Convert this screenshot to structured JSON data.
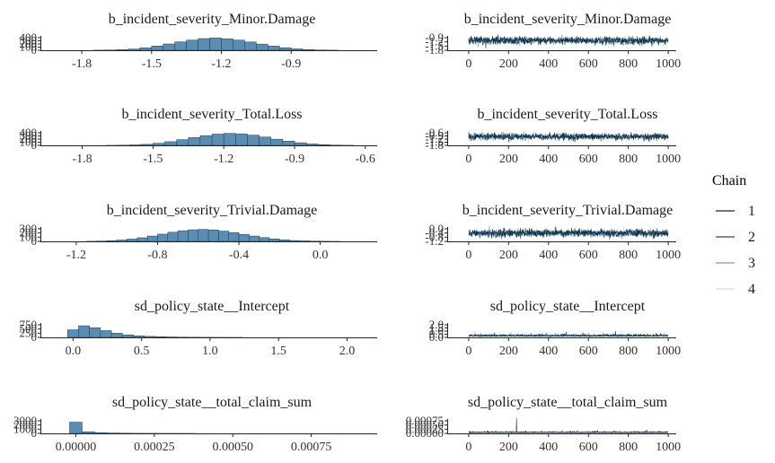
{
  "legend": {
    "title": "Chain",
    "items": [
      {
        "label": "1",
        "color": "#0b2b40"
      },
      {
        "label": "2",
        "color": "#2a4a64"
      },
      {
        "label": "3",
        "color": "#7a9cb6"
      },
      {
        "label": "4",
        "color": "#c8dceb"
      }
    ]
  },
  "chart_data": [
    {
      "type": "bar",
      "title": "b_incident_severity_Minor.Damage",
      "x_ticks": [
        -1.8,
        -1.5,
        -1.2,
        -0.9
      ],
      "x_tick_labels": [
        "-1.8",
        "-1.5",
        "-1.2",
        "-0.9"
      ],
      "xlim": [
        -1.92,
        -0.53
      ],
      "y_tick_labels": [
        "400",
        "300",
        "200",
        "100",
        "0"
      ],
      "ylim": [
        0,
        420
      ],
      "bin_width": 0.05,
      "bin_centers": [
        -1.725,
        -1.675,
        -1.625,
        -1.575,
        -1.525,
        -1.475,
        -1.425,
        -1.375,
        -1.325,
        -1.275,
        -1.225,
        -1.175,
        -1.125,
        -1.075,
        -1.025,
        -0.975,
        -0.925,
        -0.875,
        -0.825,
        -0.775,
        -0.725
      ],
      "values": [
        3,
        8,
        18,
        40,
        80,
        140,
        210,
        280,
        340,
        390,
        410,
        385,
        340,
        275,
        205,
        140,
        85,
        45,
        20,
        8,
        3
      ]
    },
    {
      "type": "line",
      "title": "b_incident_severity_Minor.Damage",
      "x_ticks": [
        0,
        200,
        400,
        600,
        800,
        1000
      ],
      "x_tick_labels": [
        "0",
        "200",
        "400",
        "600",
        "800",
        "1000"
      ],
      "xlim": [
        -40,
        1040
      ],
      "y_tick_labels": [
        "-0.9",
        "-1.2",
        "-1.5",
        "-1.8"
      ],
      "y_ticks": [
        -0.9,
        -1.2,
        -1.5,
        -1.8
      ],
      "ylim": [
        -1.9,
        -0.75
      ],
      "trace": {
        "mean": -1.21,
        "sd": 0.14
      }
    },
    {
      "type": "bar",
      "title": "b_incident_severity_Total.Loss",
      "x_ticks": [
        -1.8,
        -1.5,
        -1.2,
        -0.9,
        -0.6
      ],
      "x_tick_labels": [
        "-1.8",
        "-1.5",
        "-1.2",
        "-0.9",
        "-0.6"
      ],
      "xlim": [
        -1.92,
        -0.55
      ],
      "y_tick_labels": [
        "400",
        "300",
        "200",
        "100",
        "0"
      ],
      "ylim": [
        0,
        430
      ],
      "bin_width": 0.05,
      "bin_centers": [
        -1.675,
        -1.625,
        -1.575,
        -1.525,
        -1.475,
        -1.425,
        -1.375,
        -1.325,
        -1.275,
        -1.225,
        -1.175,
        -1.125,
        -1.075,
        -1.025,
        -0.975,
        -0.925,
        -0.875,
        -0.825,
        -0.775,
        -0.725,
        -0.675
      ],
      "values": [
        2,
        6,
        15,
        35,
        70,
        125,
        195,
        270,
        335,
        385,
        410,
        395,
        350,
        285,
        210,
        145,
        90,
        48,
        22,
        9,
        3
      ]
    },
    {
      "type": "line",
      "title": "b_incident_severity_Total.Loss",
      "x_ticks": [
        0,
        200,
        400,
        600,
        800,
        1000
      ],
      "x_tick_labels": [
        "0",
        "200",
        "400",
        "600",
        "800",
        "1000"
      ],
      "xlim": [
        -40,
        1040
      ],
      "y_tick_labels": [
        "-0.6",
        "-0.9",
        "-1.2",
        "-1.5",
        "-1.8"
      ],
      "y_ticks": [
        -0.6,
        -0.9,
        -1.2,
        -1.5,
        -1.8
      ],
      "ylim": [
        -1.9,
        -0.55
      ],
      "trace": {
        "mean": -1.17,
        "sd": 0.14
      }
    },
    {
      "type": "bar",
      "title": "b_incident_severity_Trivial.Damage",
      "x_ticks": [
        -1.2,
        -0.8,
        -0.4,
        0.0
      ],
      "x_tick_labels": [
        "-1.2",
        "-0.8",
        "-0.4",
        "0.0"
      ],
      "xlim": [
        -1.31,
        0.28
      ],
      "y_tick_labels": [
        "300",
        "200",
        "100",
        "0"
      ],
      "ylim": [
        0,
        330
      ],
      "bin_width": 0.05,
      "bin_centers": [
        -1.125,
        -1.075,
        -1.025,
        -0.975,
        -0.925,
        -0.875,
        -0.825,
        -0.775,
        -0.725,
        -0.675,
        -0.625,
        -0.575,
        -0.525,
        -0.475,
        -0.425,
        -0.375,
        -0.325,
        -0.275,
        -0.225,
        -0.175,
        -0.125,
        -0.075,
        -0.025,
        0.025,
        0.075
      ],
      "values": [
        3,
        8,
        18,
        35,
        60,
        95,
        140,
        190,
        240,
        280,
        305,
        315,
        300,
        270,
        230,
        185,
        140,
        100,
        65,
        40,
        22,
        12,
        6,
        3,
        1
      ]
    },
    {
      "type": "line",
      "title": "b_incident_severity_Trivial.Damage",
      "x_ticks": [
        0,
        200,
        400,
        600,
        800,
        1000
      ],
      "x_tick_labels": [
        "0",
        "200",
        "400",
        "600",
        "800",
        "1000"
      ],
      "xlim": [
        -40,
        1040
      ],
      "y_tick_labels": [
        "0.0",
        "-0.4",
        "-0.8",
        "-1.2"
      ],
      "y_ticks": [
        0.0,
        -0.4,
        -0.8,
        -1.2
      ],
      "ylim": [
        -1.3,
        0.15
      ],
      "trace": {
        "mean": -0.56,
        "sd": 0.18
      }
    },
    {
      "type": "bar",
      "title": "sd_policy_state__Intercept",
      "x_ticks": [
        0.0,
        0.5,
        1.0,
        1.5,
        2.0
      ],
      "x_tick_labels": [
        "0.0",
        "0.5",
        "1.0",
        "1.5",
        "2.0"
      ],
      "xlim": [
        -0.14,
        2.22
      ],
      "y_tick_labels": [
        "750",
        "500",
        "250",
        "0"
      ],
      "ylim": [
        0,
        780
      ],
      "bin_width": 0.08,
      "bin_centers": [
        0.0,
        0.08,
        0.16,
        0.24,
        0.32,
        0.4,
        0.48,
        0.56,
        0.64,
        0.72,
        0.8,
        0.88,
        0.96,
        1.04,
        1.12,
        1.2
      ],
      "values": [
        470,
        720,
        600,
        420,
        260,
        160,
        100,
        60,
        40,
        25,
        15,
        10,
        6,
        4,
        2,
        1
      ]
    },
    {
      "type": "line",
      "title": "sd_policy_state__Intercept",
      "x_ticks": [
        0,
        200,
        400,
        600,
        800,
        1000
      ],
      "x_tick_labels": [
        "0",
        "200",
        "400",
        "600",
        "800",
        "1000"
      ],
      "xlim": [
        -40,
        1040
      ],
      "y_tick_labels": [
        "2.0",
        "1.5",
        "1.0",
        "0.5",
        "0.0"
      ],
      "y_ticks": [
        2.0,
        1.5,
        1.0,
        0.5,
        0.0
      ],
      "ylim": [
        -0.1,
        2.2
      ],
      "trace": {
        "mean": 0.2,
        "sd": 0.18,
        "positive": true
      }
    },
    {
      "type": "bar",
      "title": "sd_policy_state__total_claim_sum",
      "x_ticks": [
        0.0,
        0.00025,
        0.0005,
        0.00075
      ],
      "x_tick_labels": [
        "0.00000",
        "0.00025",
        "0.00050",
        "0.00075"
      ],
      "xlim": [
        -7e-05,
        0.00096
      ],
      "y_tick_labels": [
        "3000",
        "2000",
        "1000",
        "0"
      ],
      "ylim": [
        0,
        3200
      ],
      "bin_width": 4e-05,
      "bin_centers": [
        0.0,
        4e-05,
        8e-05,
        0.00012,
        0.00016,
        0.0002,
        0.00024,
        0.00028,
        0.00032,
        0.00036
      ],
      "values": [
        2850,
        420,
        180,
        90,
        50,
        30,
        18,
        10,
        6,
        3
      ]
    },
    {
      "type": "line",
      "title": "sd_policy_state__total_claim_sum",
      "x_ticks": [
        0,
        200,
        400,
        600,
        800,
        1000
      ],
      "x_tick_labels": [
        "0",
        "200",
        "400",
        "600",
        "800",
        "1000"
      ],
      "xlim": [
        -40,
        1040
      ],
      "y_tick_labels": [
        "0.00075",
        "0.00050",
        "0.00025",
        "0.00000"
      ],
      "y_ticks": [
        0.00075,
        0.0005,
        0.00025,
        0.0
      ],
      "ylim": [
        -3e-05,
        0.00088
      ],
      "trace": {
        "mean": 3e-05,
        "sd": 4e-05,
        "positive": true,
        "spike_at": 240,
        "spike_value": 0.00085
      }
    }
  ]
}
